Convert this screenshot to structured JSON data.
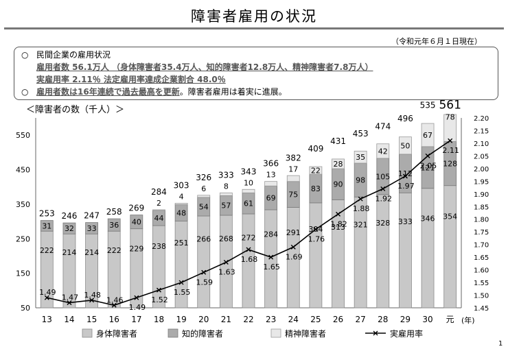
{
  "page": {
    "title": "障害者雇用の状況",
    "as_of": "（令和元年６月１日現在）",
    "page_number": "1"
  },
  "info": {
    "bullet": "○",
    "line1": "民間企業の雇用状況",
    "line2": "雇用者数 56.1万人 （身体障害者35.4万人、知的障害者12.8万人、精神障害者7.8万人）",
    "line3": "実雇用率 2.11％  法定雇用率達成企業割合  48.0％",
    "line4_highlight": "雇用者数は16年連続で過去最高を更新",
    "line4_rest": "。障害者雇用は着実に進展。"
  },
  "chart_data": {
    "type": "bar",
    "stacked": true,
    "y_axis_label": "＜障害者の数（千人）＞",
    "x_unit": "(年)",
    "categories": [
      "13",
      "14",
      "15",
      "16",
      "17",
      "18",
      "19",
      "20",
      "21",
      "22",
      "23",
      "24",
      "25",
      "26",
      "27",
      "28",
      "29",
      "30",
      "元"
    ],
    "series": [
      {
        "name": "身体障害者",
        "color": "#c8c8c8",
        "values": [
          222,
          214,
          214,
          222,
          229,
          238,
          251,
          266,
          268,
          272,
          284,
          291,
          304,
          313,
          321,
          328,
          333,
          346,
          354
        ]
      },
      {
        "name": "知的障害者",
        "color": "#ababab",
        "values": [
          31,
          32,
          33,
          36,
          40,
          44,
          48,
          54,
          57,
          61,
          69,
          75,
          83,
          90,
          98,
          105,
          112,
          121,
          128
        ]
      },
      {
        "name": "精神障害者",
        "color": "#e8e8e8",
        "values": [
          0,
          0,
          0,
          0,
          0,
          2,
          4,
          6,
          8,
          10,
          13,
          17,
          22,
          28,
          35,
          42,
          50,
          67,
          78
        ]
      }
    ],
    "totals": [
      253,
      246,
      247,
      258,
      269,
      284,
      303,
      326,
      333,
      343,
      366,
      382,
      409,
      431,
      453,
      474,
      496,
      535,
      561
    ],
    "line": {
      "name": "実雇用率",
      "values": [
        1.49,
        1.47,
        1.48,
        1.46,
        1.49,
        1.52,
        1.55,
        1.59,
        1.63,
        1.68,
        1.65,
        1.69,
        1.76,
        1.82,
        1.88,
        1.92,
        1.97,
        2.05,
        2.11
      ]
    },
    "y_left": {
      "min": 50,
      "max": 600,
      "ticks": [
        50,
        150,
        250,
        350,
        450,
        550
      ]
    },
    "y_right": {
      "min": 1.45,
      "max": 2.2,
      "ticks": [
        "1.45",
        "1.50",
        "1.55",
        "1.60",
        "1.65",
        "1.70",
        "1.75",
        "1.80",
        "1.85",
        "1.90",
        "1.95",
        "2.00",
        "2.05",
        "2.10",
        "2.15",
        "2.20"
      ]
    },
    "legend_placement": "bottom"
  }
}
